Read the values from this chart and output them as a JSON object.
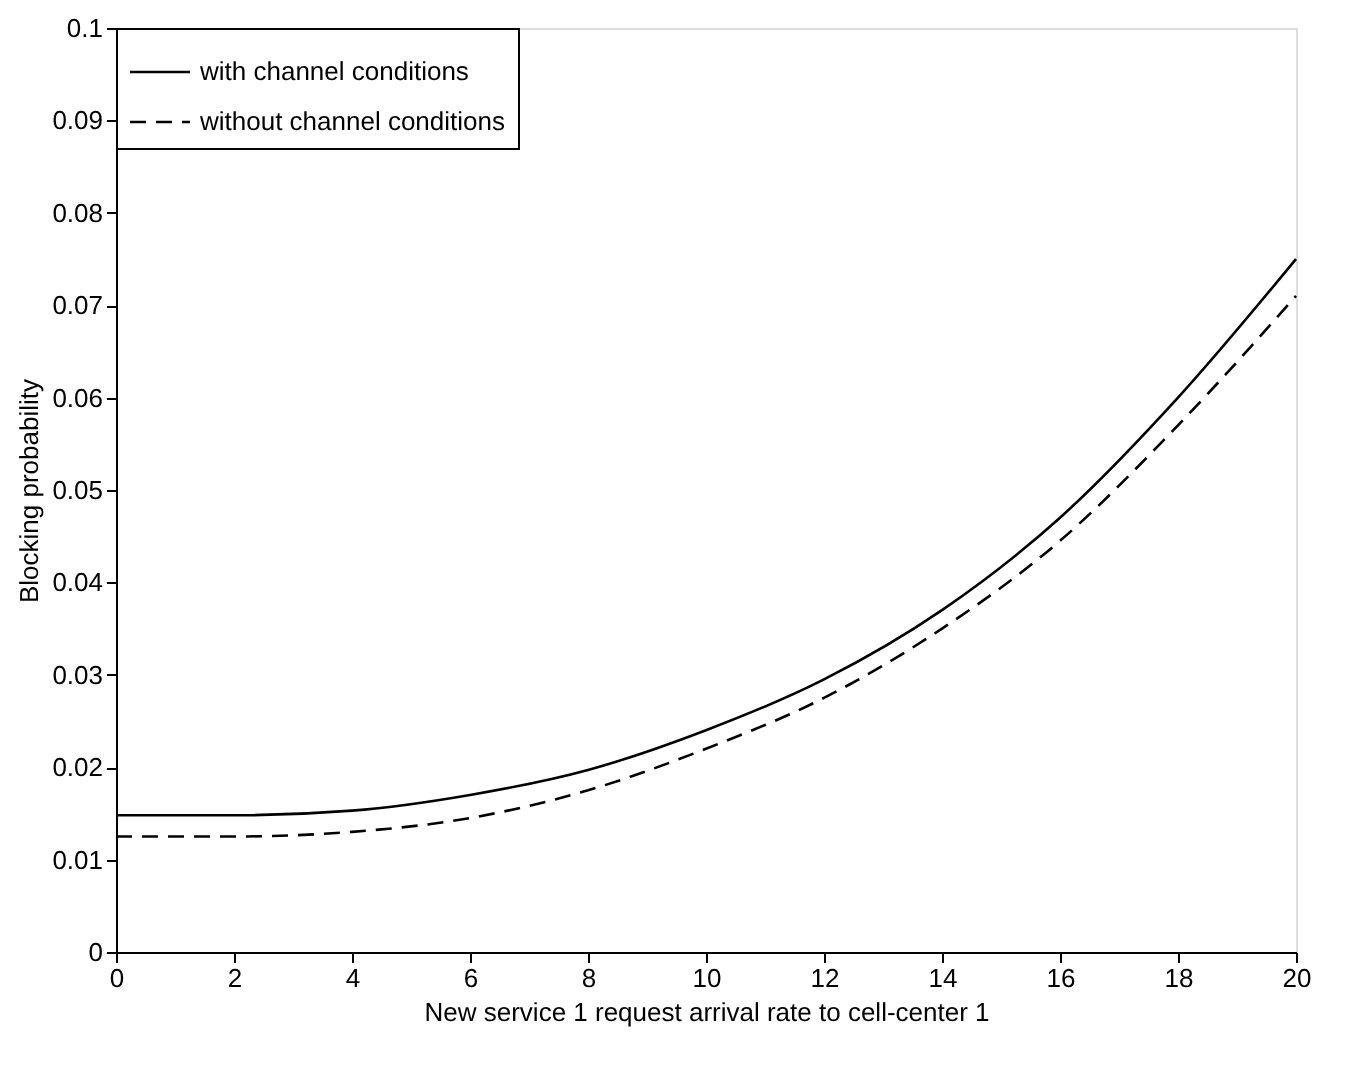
{
  "chart_data": {
    "type": "line",
    "xlabel": "New service 1 request arrival rate to cell-center 1",
    "ylabel": "Blocking probability",
    "x": [
      0,
      2,
      4,
      6,
      8,
      10,
      12,
      14,
      16,
      18,
      20
    ],
    "series": [
      {
        "name": "with channel conditions",
        "color": "#000000",
        "line_style": "solid",
        "values": [
          0.0148,
          0.0148,
          0.0153,
          0.017,
          0.0197,
          0.024,
          0.0295,
          0.037,
          0.047,
          0.06,
          0.075
        ]
      },
      {
        "name": "without channel conditions",
        "color": "#000000",
        "line_style": "dashed",
        "values": [
          0.0125,
          0.0125,
          0.013,
          0.0145,
          0.0175,
          0.022,
          0.0275,
          0.035,
          0.0445,
          0.057,
          0.071
        ]
      }
    ],
    "xlim": [
      0,
      20
    ],
    "xticks": [
      0,
      2,
      4,
      6,
      8,
      10,
      12,
      14,
      16,
      18,
      20
    ],
    "ylim": [
      0,
      0.1
    ],
    "yticks": [
      0,
      0.01,
      0.02,
      0.03,
      0.04,
      0.05,
      0.06,
      0.07,
      0.08,
      0.09,
      0.1
    ],
    "grid": false,
    "legend": "top left",
    "marker": "none"
  }
}
